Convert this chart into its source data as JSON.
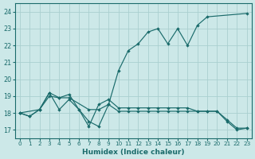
{
  "xlabel": "Humidex (Indice chaleur)",
  "ylabel": "",
  "bg_color": "#cce8e8",
  "line_color": "#1a6b6b",
  "grid_color": "#aacfcf",
  "xlim": [
    -0.5,
    23.5
  ],
  "ylim": [
    16.5,
    24.5
  ],
  "yticks": [
    17,
    18,
    19,
    20,
    21,
    22,
    23,
    24
  ],
  "xticks": [
    0,
    1,
    2,
    3,
    4,
    5,
    6,
    7,
    8,
    9,
    10,
    11,
    12,
    13,
    14,
    15,
    16,
    17,
    18,
    19,
    20,
    21,
    22,
    23
  ],
  "series": [
    {
      "x": [
        0,
        2,
        3,
        4,
        5,
        7,
        8,
        9,
        10,
        11,
        12,
        13,
        14,
        15,
        16,
        17,
        18,
        19,
        23
      ],
      "y": [
        18.0,
        18.2,
        19.2,
        18.9,
        18.9,
        18.2,
        18.2,
        18.5,
        20.5,
        21.7,
        22.1,
        22.8,
        23.0,
        22.1,
        23.0,
        22.0,
        23.2,
        23.7,
        23.9
      ]
    },
    {
      "x": [
        0,
        1,
        2,
        3,
        4,
        5,
        6,
        7,
        8,
        9,
        10,
        11,
        12,
        13,
        14,
        15,
        16,
        17,
        18,
        19,
        20,
        21,
        22,
        23
      ],
      "y": [
        18.0,
        17.8,
        18.2,
        19.2,
        18.2,
        18.8,
        18.2,
        17.2,
        18.5,
        18.8,
        18.3,
        18.3,
        18.3,
        18.3,
        18.3,
        18.3,
        18.3,
        18.3,
        18.1,
        18.1,
        18.1,
        17.6,
        17.1,
        17.1
      ]
    },
    {
      "x": [
        0,
        1,
        2,
        3,
        4,
        5,
        6,
        7,
        8,
        9,
        10,
        11,
        12,
        13,
        14,
        15,
        16,
        17,
        18,
        19,
        20,
        21,
        22,
        23
      ],
      "y": [
        18.0,
        17.8,
        18.2,
        19.0,
        18.9,
        19.1,
        18.2,
        17.5,
        17.2,
        18.5,
        18.1,
        18.1,
        18.1,
        18.1,
        18.1,
        18.1,
        18.1,
        18.1,
        18.1,
        18.1,
        18.1,
        17.5,
        17.0,
        17.1
      ]
    }
  ]
}
